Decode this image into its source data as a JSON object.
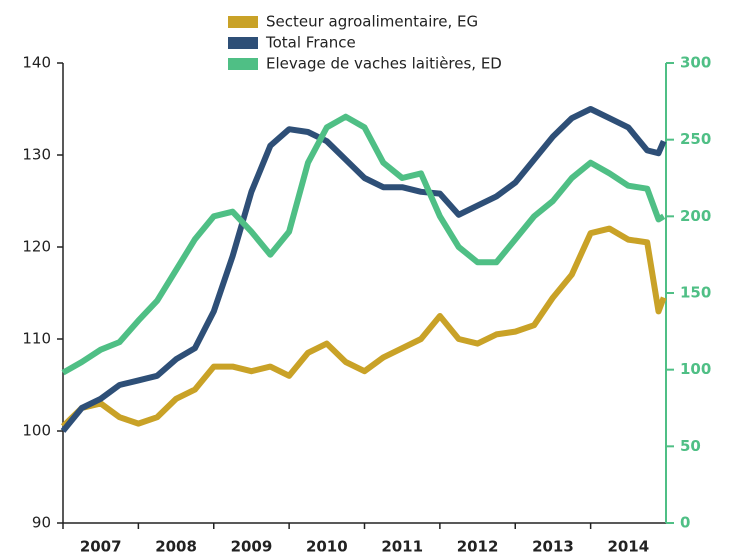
{
  "chart_data": {
    "type": "line",
    "x": [
      2007.0,
      2007.25,
      2007.5,
      2007.75,
      2008.0,
      2008.25,
      2008.5,
      2008.75,
      2009.0,
      2009.25,
      2009.5,
      2009.75,
      2010.0,
      2010.25,
      2010.5,
      2010.75,
      2011.0,
      2011.25,
      2011.5,
      2011.75,
      2012.0,
      2012.25,
      2012.5,
      2012.75,
      2013.0,
      2013.25,
      2013.5,
      2013.75,
      2014.0,
      2014.25,
      2014.5,
      2014.75,
      2014.9,
      2014.97
    ],
    "series": [
      {
        "name": "Secteur agroalimentaire, EG",
        "color": "#c9a227",
        "values": [
          100.5,
          102.5,
          103,
          101.5,
          100.8,
          101.5,
          103.5,
          104.5,
          107,
          107,
          106.5,
          107,
          106,
          108.5,
          109.5,
          107.5,
          106.5,
          108,
          109,
          110,
          112.5,
          110,
          109.5,
          110.5,
          110.8,
          111.5,
          114.5,
          117,
          121.5,
          122,
          120.8,
          120.5,
          113,
          114.5
        ]
      },
      {
        "name": "Total France",
        "color": "#2e4f77",
        "values": [
          100,
          102.5,
          103.5,
          105,
          105.5,
          106,
          107.8,
          109,
          113,
          119,
          126,
          131,
          132.8,
          132.5,
          131.5,
          129.5,
          127.5,
          126.5,
          126.5,
          126,
          125.8,
          123.5,
          124.5,
          125.5,
          127,
          129.5,
          132,
          134,
          135,
          134,
          133,
          130.5,
          130.2,
          131.5
        ]
      },
      {
        "name": "Elevage de vaches laitières, ED",
        "color": "#4fbf85",
        "axis": "y2",
        "values": [
          98,
          105,
          113,
          118,
          132,
          145,
          165,
          185,
          200,
          203,
          190,
          175,
          190,
          235,
          258,
          265,
          258,
          235,
          225,
          228,
          200,
          180,
          170,
          170,
          185,
          200,
          210,
          225,
          235,
          228,
          220,
          218,
          198,
          200
        ]
      }
    ],
    "xlim": [
      2007,
      2015
    ],
    "xticks": [
      2007,
      2008,
      2009,
      2010,
      2011,
      2012,
      2013,
      2014
    ],
    "ylim": [
      90,
      140
    ],
    "yticks": [
      90,
      100,
      110,
      120,
      130,
      140
    ],
    "y2lim": [
      0,
      300
    ],
    "y2ticks": [
      0,
      50,
      100,
      150,
      200,
      250,
      300
    ],
    "y2color": "#4fbf85"
  }
}
